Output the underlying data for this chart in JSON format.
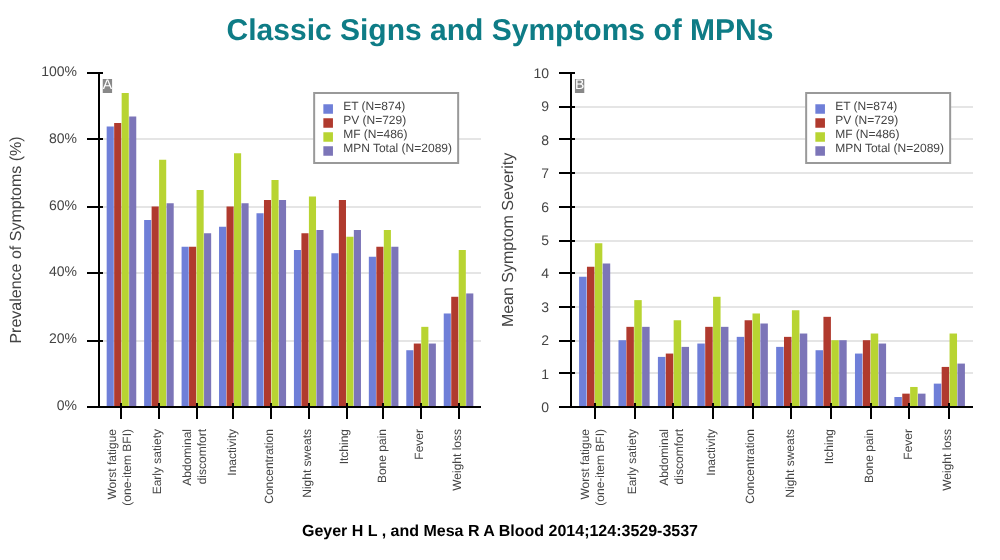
{
  "chart_data": [
    {
      "type": "bar",
      "title": "Classic Signs and Symptoms of MPNs",
      "ylabel": "Prevalence of Symptoms (%)",
      "annotations": [
        "A"
      ],
      "categories": [
        "Worst fatigue (one-item BFI)",
        "Early satiety",
        "Abdominal discomfort",
        "Inactivity",
        "Concentration",
        "Night sweats",
        "Itching",
        "Bone pain",
        "Fever",
        "Weight loss"
      ],
      "series": [
        {
          "name": "ET (N=874)",
          "color": "#6f7fd8",
          "values": [
            84,
            56,
            48,
            54,
            58,
            47,
            46,
            45,
            17,
            28
          ]
        },
        {
          "name": "PV (N=729)",
          "color": "#b03a2e",
          "values": [
            85,
            60,
            48,
            60,
            62,
            52,
            62,
            48,
            19,
            33
          ]
        },
        {
          "name": "MF (N=486)",
          "color": "#b8d432",
          "values": [
            94,
            74,
            65,
            76,
            68,
            63,
            51,
            53,
            24,
            47
          ]
        },
        {
          "name": "MPN Total (N=2089)",
          "color": "#7c75b8",
          "values": [
            87,
            61,
            52,
            61,
            62,
            53,
            53,
            48,
            19,
            34
          ]
        }
      ],
      "ylim": [
        0,
        100
      ],
      "yticks": [
        {
          "value": 0,
          "label": "0%"
        },
        {
          "value": 20,
          "label": "20%"
        },
        {
          "value": 40,
          "label": "40%"
        },
        {
          "value": 60,
          "label": "60%"
        },
        {
          "value": 80,
          "label": "80%"
        },
        {
          "value": 100,
          "label": "100%"
        }
      ],
      "grid": "y",
      "legend": "top right"
    },
    {
      "type": "bar",
      "ylabel": "Mean Symptom Severity",
      "annotations": [
        "B",
        "Geyer H L , and Mesa R A Blood 2014;124:3529-3537"
      ],
      "categories": [
        "Worst fatigue (one-item BFI)",
        "Early satiety",
        "Abdominal discomfort",
        "Inactivity",
        "Concentration",
        "Night sweats",
        "Itching",
        "Bone pain",
        "Fever",
        "Weight loss"
      ],
      "series": [
        {
          "name": "ET (N=874)",
          "color": "#6f7fd8",
          "values": [
            3.9,
            2.0,
            1.5,
            1.9,
            2.1,
            1.8,
            1.7,
            1.6,
            0.3,
            0.7
          ]
        },
        {
          "name": "PV (N=729)",
          "color": "#b03a2e",
          "values": [
            4.2,
            2.4,
            1.6,
            2.4,
            2.6,
            2.1,
            2.7,
            2.0,
            0.4,
            1.2
          ]
        },
        {
          "name": "MF (N=486)",
          "color": "#b8d432",
          "values": [
            4.9,
            3.2,
            2.6,
            3.3,
            2.8,
            2.9,
            2.0,
            2.2,
            0.6,
            2.2
          ]
        },
        {
          "name": "MPN Total (N=2089)",
          "color": "#7c75b8",
          "values": [
            4.3,
            2.4,
            1.8,
            2.4,
            2.5,
            2.2,
            2.0,
            1.9,
            0.4,
            1.3
          ]
        }
      ],
      "ylim": [
        0,
        10
      ],
      "yticks": [
        0,
        1,
        2,
        3,
        4,
        5,
        6,
        7,
        8,
        9,
        10
      ],
      "grid": "y",
      "legend": "top right"
    }
  ]
}
